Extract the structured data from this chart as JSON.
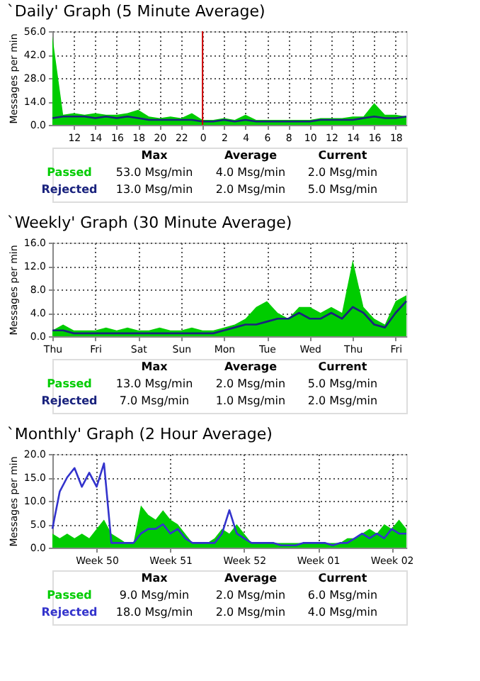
{
  "chart_data": [
    {
      "type": "area",
      "title": "`Daily' Graph (5 Minute Average)",
      "ylabel": "Messages per min",
      "categories": [
        null,
        null,
        "12",
        null,
        "14",
        null,
        "16",
        null,
        "18",
        null,
        "20",
        null,
        "22",
        null,
        "0",
        null,
        "2",
        null,
        "4",
        null,
        "6",
        null,
        "8",
        null,
        "10",
        null,
        "12",
        null,
        "14",
        null,
        "16",
        null,
        "18",
        null
      ],
      "series": [
        {
          "name": "Passed",
          "type": "area",
          "color": "#00cc00",
          "values": [
            53,
            6,
            7,
            6,
            7,
            6,
            6,
            7,
            9,
            5,
            4,
            5,
            4,
            7,
            3,
            3,
            4,
            3,
            6,
            3,
            3,
            3,
            3,
            3,
            3,
            4,
            4,
            4,
            5,
            5,
            13,
            6,
            6,
            5
          ]
        },
        {
          "name": "Rejected",
          "type": "line",
          "line_style": "solid",
          "color": "#1a237e",
          "values": [
            4,
            5,
            5,
            5,
            4,
            5,
            4,
            5,
            4,
            3,
            3,
            3,
            3,
            3,
            2,
            2,
            3,
            2,
            3,
            2,
            2,
            2,
            2,
            2,
            2,
            3,
            3,
            3,
            3,
            4,
            5,
            4,
            4,
            5
          ]
        }
      ],
      "ylim": [
        0,
        56
      ],
      "yticks": [
        {
          "value": 0,
          "label": "0.0"
        },
        {
          "value": 14,
          "label": "14.0"
        },
        {
          "value": 28,
          "label": "28.0"
        },
        {
          "value": 42,
          "label": "42.0"
        },
        {
          "value": 56,
          "label": "56.0"
        }
      ],
      "ref_lines": [
        {
          "axis": "x",
          "value": "0",
          "color": "#cc0000"
        }
      ],
      "grid": true,
      "legend": "bottom left",
      "annotations": [
        "Max",
        "Average",
        "Current",
        "53.0 Msg/min",
        "4.0 Msg/min",
        "2.0 Msg/min",
        "13.0 Msg/min",
        "2.0 Msg/min",
        "5.0 Msg/min"
      ]
    },
    {
      "type": "area",
      "title": "`Weekly' Graph (30 Minute Average)",
      "ylabel": "Messages per min",
      "categories": [
        "Thu",
        null,
        null,
        null,
        "Fri",
        null,
        null,
        null,
        "Sat",
        null,
        null,
        null,
        "Sun",
        null,
        null,
        null,
        "Mon",
        null,
        null,
        null,
        "Tue",
        null,
        null,
        null,
        "Wed",
        null,
        null,
        null,
        "Thu",
        null,
        null,
        null,
        "Fri",
        null
      ],
      "series": [
        {
          "name": "Passed",
          "type": "area",
          "color": "#00cc00",
          "values": [
            1,
            2,
            1,
            1,
            1,
            1.5,
            1,
            1.5,
            1,
            1,
            1.5,
            1,
            1,
            1.5,
            1,
            1,
            1.5,
            2,
            3,
            5,
            6,
            4,
            3,
            5,
            5,
            4,
            5,
            4,
            13,
            5,
            3,
            2,
            6,
            7
          ]
        },
        {
          "name": "Rejected",
          "type": "line",
          "line_style": "solid",
          "color": "#1a237e",
          "values": [
            1,
            1,
            0.5,
            0.5,
            0.5,
            0.5,
            0.5,
            0.5,
            0.5,
            0.5,
            0.5,
            0.5,
            0.5,
            0.5,
            0.5,
            0.5,
            1,
            1.5,
            2,
            2,
            2.5,
            3,
            3,
            4,
            3,
            3,
            4,
            3,
            5,
            4,
            2,
            1.5,
            4,
            6
          ]
        }
      ],
      "ylim": [
        0,
        16
      ],
      "yticks": [
        {
          "value": 0,
          "label": "0.0"
        },
        {
          "value": 4,
          "label": "4.0"
        },
        {
          "value": 8,
          "label": "8.0"
        },
        {
          "value": 12,
          "label": "12.0"
        },
        {
          "value": 16,
          "label": "16.0"
        }
      ],
      "grid": true,
      "legend": "bottom left",
      "annotations": [
        "Max",
        "Average",
        "Current",
        "13.0 Msg/min",
        "2.0 Msg/min",
        "5.0 Msg/min",
        "7.0 Msg/min",
        "1.0 Msg/min",
        "2.0 Msg/min"
      ]
    },
    {
      "type": "area",
      "title": "`Monthly' Graph (2 Hour Average)",
      "ylabel": "Messages per min",
      "categories": [
        null,
        null,
        null,
        null,
        null,
        null,
        "Week 50",
        null,
        null,
        null,
        null,
        null,
        null,
        null,
        null,
        null,
        "Week 51",
        null,
        null,
        null,
        null,
        null,
        null,
        null,
        null,
        null,
        "Week 52",
        null,
        null,
        null,
        null,
        null,
        null,
        null,
        null,
        null,
        "Week 01",
        null,
        null,
        null,
        null,
        null,
        null,
        null,
        null,
        null,
        "Week 02",
        null,
        null
      ],
      "series": [
        {
          "name": "Passed",
          "type": "area",
          "color": "#00cc00",
          "values": [
            3,
            2,
            3,
            2,
            3,
            2,
            4,
            6,
            3,
            2,
            1,
            1,
            9,
            7,
            6,
            8,
            6,
            5,
            3,
            1,
            1,
            1,
            2,
            4,
            3,
            5,
            3,
            1,
            1,
            1,
            1,
            1,
            1,
            1,
            1,
            1,
            1,
            1,
            1,
            1,
            2,
            2,
            3,
            4,
            3,
            5,
            4,
            6,
            4
          ]
        },
        {
          "name": "Rejected",
          "type": "line",
          "line_style": "solid",
          "color": "#3333cc",
          "values": [
            4,
            12,
            15,
            17,
            13,
            16,
            13,
            18,
            1,
            1,
            1,
            1,
            3,
            4,
            4,
            5,
            3,
            4,
            2,
            1,
            1,
            1,
            1,
            3,
            8,
            3,
            2,
            1,
            1,
            1,
            1,
            0.5,
            0.5,
            0.5,
            1,
            1,
            1,
            1,
            0.5,
            1,
            1,
            2,
            3,
            2,
            3,
            2,
            4,
            3,
            3
          ]
        }
      ],
      "ylim": [
        0,
        20
      ],
      "yticks": [
        {
          "value": 0,
          "label": "0.0"
        },
        {
          "value": 5,
          "label": "5.0"
        },
        {
          "value": 10,
          "label": "10.0"
        },
        {
          "value": 15,
          "label": "15.0"
        },
        {
          "value": 20,
          "label": "20.0"
        }
      ],
      "grid": true,
      "legend": "bottom left",
      "annotations": [
        "Max",
        "Average",
        "Current",
        "9.0 Msg/min",
        "2.0 Msg/min",
        "6.0 Msg/min",
        "18.0 Msg/min",
        "2.0 Msg/min",
        "4.0 Msg/min"
      ]
    }
  ]
}
